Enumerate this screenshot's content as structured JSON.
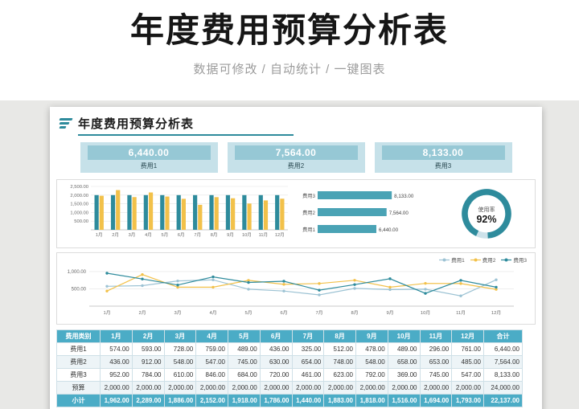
{
  "page": {
    "title": "年度费用预算分析表",
    "subtitle": "数据可修改 / 自动统计 / 一键图表"
  },
  "card": {
    "title": "年度费用预算分析表",
    "stats": [
      {
        "value": "6,440.00",
        "label": "费用1"
      },
      {
        "value": "7,564.00",
        "label": "费用2"
      },
      {
        "value": "8,133.00",
        "label": "费用3"
      }
    ]
  },
  "colors": {
    "teal": "#2E8B9C",
    "teal_header": "#4BACC6",
    "hbar": "#4AA3B5",
    "yellow": "#F2C14A",
    "light_blue": "#9DC3D4",
    "stat_outer": "#C6E1E9",
    "stat_inner": "#96C8D5",
    "ring_rest": "#CDE2EA",
    "row_band": "#EDF4F7"
  },
  "chart_data": [
    {
      "type": "bar",
      "categories": [
        "1月",
        "2月",
        "3月",
        "4月",
        "5月",
        "6月",
        "7月",
        "8月",
        "9月",
        "10月",
        "11月",
        "12月"
      ],
      "series": [
        {
          "name": "预算",
          "color": "#2E8B9C",
          "values": [
            2000,
            2000,
            2000,
            2000,
            2000,
            2000,
            2000,
            2000,
            2000,
            2000,
            2000,
            2000
          ]
        },
        {
          "name": "小计",
          "color": "#F2C14A",
          "values": [
            1962,
            2289,
            1886,
            2152,
            1918,
            1786,
            1440,
            1883,
            1818,
            1516,
            1694,
            1793
          ]
        }
      ],
      "ylim": [
        0,
        2500
      ],
      "yticks": [
        {
          "v": 500,
          "label": "500.00"
        },
        {
          "v": 1000,
          "label": "1,000.00"
        },
        {
          "v": 1500,
          "label": "1,500.00"
        },
        {
          "v": 2000,
          "label": "2,000.00"
        },
        {
          "v": 2500,
          "label": "2,500.00"
        }
      ],
      "grid": true,
      "legend_position": "none"
    },
    {
      "type": "bar-horizontal",
      "rows": [
        {
          "label": "费用3",
          "value": 8133,
          "value_label": "8,133.00"
        },
        {
          "label": "费用2",
          "value": 7564,
          "value_label": "7,564.00"
        },
        {
          "label": "费用1",
          "value": 6440,
          "value_label": "6,440.00"
        }
      ],
      "xlim": [
        0,
        9000
      ]
    },
    {
      "type": "donut",
      "label": "使用率",
      "value_label": "92%",
      "percent": 92
    },
    {
      "type": "line",
      "categories": [
        "1月",
        "2月",
        "3月",
        "4月",
        "5月",
        "6月",
        "7月",
        "8月",
        "9月",
        "10月",
        "11月",
        "12月"
      ],
      "series": [
        {
          "name": "费用1",
          "color": "#9DC3D4",
          "values": [
            574,
            593,
            728,
            759,
            489,
            436,
            325,
            512,
            478,
            489,
            296,
            761
          ]
        },
        {
          "name": "费用2",
          "color": "#F2C14A",
          "values": [
            436,
            912,
            548,
            547,
            745,
            630,
            654,
            748,
            548,
            658,
            653,
            485
          ]
        },
        {
          "name": "费用3",
          "color": "#2E8B9C",
          "values": [
            952,
            784,
            610,
            846,
            684,
            720,
            461,
            623,
            792,
            369,
            745,
            547
          ]
        }
      ],
      "ylim": [
        0,
        1300
      ],
      "yticks": [
        {
          "v": 500,
          "label": "500.00"
        },
        {
          "v": 1000,
          "label": "1,000.00"
        }
      ],
      "grid": true,
      "legend_position": "top-right"
    }
  ],
  "table": {
    "headers": [
      "费用类别",
      "1月",
      "2月",
      "3月",
      "4月",
      "5月",
      "6月",
      "7月",
      "8月",
      "9月",
      "10月",
      "11月",
      "12月",
      "合计"
    ],
    "rows": [
      {
        "label": "费用1",
        "style": "normal",
        "cells": [
          "574.00",
          "593.00",
          "728.00",
          "759.00",
          "489.00",
          "436.00",
          "325.00",
          "512.00",
          "478.00",
          "489.00",
          "296.00",
          "761.00",
          "6,440.00"
        ]
      },
      {
        "label": "费用2",
        "style": "normal",
        "cells": [
          "436.00",
          "912.00",
          "548.00",
          "547.00",
          "745.00",
          "630.00",
          "654.00",
          "748.00",
          "548.00",
          "658.00",
          "653.00",
          "485.00",
          "7,564.00"
        ]
      },
      {
        "label": "费用3",
        "style": "normal",
        "cells": [
          "952.00",
          "784.00",
          "610.00",
          "846.00",
          "684.00",
          "720.00",
          "461.00",
          "623.00",
          "792.00",
          "369.00",
          "745.00",
          "547.00",
          "8,133.00"
        ]
      },
      {
        "label": "预算",
        "style": "normal",
        "cells": [
          "2,000.00",
          "2,000.00",
          "2,000.00",
          "2,000.00",
          "2,000.00",
          "2,000.00",
          "2,000.00",
          "2,000.00",
          "2,000.00",
          "2,000.00",
          "2,000.00",
          "2,000.00",
          "24,000.00"
        ]
      },
      {
        "label": "小计",
        "style": "subtotal",
        "cells": [
          "1,962.00",
          "2,289.00",
          "1,886.00",
          "2,152.00",
          "1,918.00",
          "1,786.00",
          "1,440.00",
          "1,883.00",
          "1,818.00",
          "1,516.00",
          "1,694.00",
          "1,793.00",
          "22,137.00"
        ]
      }
    ]
  }
}
